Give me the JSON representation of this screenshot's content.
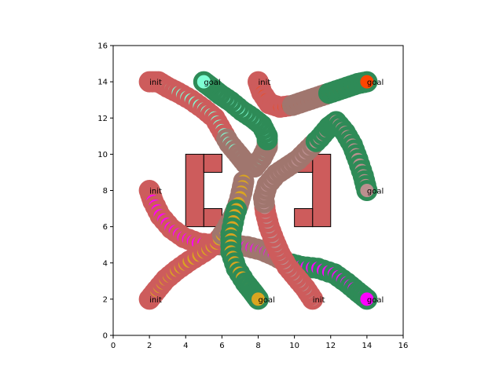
{
  "chart_data": {
    "type": "scatter",
    "title": "",
    "xlabel": "",
    "ylabel": "",
    "xlim": [
      0,
      16
    ],
    "ylim": [
      0,
      16
    ],
    "xticks": [
      0,
      2,
      4,
      6,
      8,
      10,
      12,
      14,
      16
    ],
    "yticks": [
      0,
      2,
      4,
      6,
      8,
      10,
      12,
      14,
      16
    ],
    "grid": false,
    "legend": "none",
    "colors": {
      "obstacle_fill": "#cd5c5c",
      "obstacle_edge": "#000000",
      "goal_ring": "#2e8b57",
      "init_ring": "#cd5c5c"
    },
    "obstacles": [
      {
        "x": 4,
        "y": 6,
        "w": 1,
        "h": 4
      },
      {
        "x": 5,
        "y": 9,
        "w": 1,
        "h": 1
      },
      {
        "x": 5,
        "y": 6,
        "w": 1,
        "h": 1
      },
      {
        "x": 11,
        "y": 6,
        "w": 1,
        "h": 4
      },
      {
        "x": 10,
        "y": 9,
        "w": 1,
        "h": 1
      },
      {
        "x": 10,
        "y": 6,
        "w": 1,
        "h": 1
      }
    ],
    "annotations": [
      {
        "text": "init",
        "x": 2,
        "y": 14
      },
      {
        "text": "goal",
        "x": 5,
        "y": 14
      },
      {
        "text": "init",
        "x": 8,
        "y": 14
      },
      {
        "text": "goal",
        "x": 14,
        "y": 14
      },
      {
        "text": "init",
        "x": 2,
        "y": 8
      },
      {
        "text": "goal",
        "x": 14,
        "y": 8
      },
      {
        "text": "init",
        "x": 2,
        "y": 2
      },
      {
        "text": "goal",
        "x": 8,
        "y": 2
      },
      {
        "text": "init",
        "x": 11,
        "y": 2
      },
      {
        "text": "goal",
        "x": 14,
        "y": 2
      }
    ],
    "series": [
      {
        "color": "#7fffd4",
        "points": [
          [
            2,
            14
          ],
          [
            2.5,
            14
          ],
          [
            3,
            13.7
          ],
          [
            3.6,
            13.4
          ],
          [
            4.3,
            13
          ],
          [
            5,
            12.5
          ],
          [
            5.6,
            12
          ],
          [
            6,
            11.3
          ],
          [
            6.4,
            10.6
          ],
          [
            6.9,
            10
          ],
          [
            7.3,
            9.5
          ],
          [
            7.8,
            9.3
          ],
          [
            8.2,
            9.8
          ],
          [
            8.5,
            10.4
          ],
          [
            8.5,
            11
          ],
          [
            8.2,
            11.6
          ],
          [
            7.7,
            12
          ],
          [
            7.1,
            12.4
          ],
          [
            6.5,
            12.9
          ],
          [
            5.9,
            13.3
          ],
          [
            5.4,
            13.7
          ],
          [
            5,
            14
          ]
        ]
      },
      {
        "color": "#ff4500",
        "points": [
          [
            8,
            14
          ],
          [
            8.2,
            13.4
          ],
          [
            8.6,
            12.8
          ],
          [
            9.2,
            12.6
          ],
          [
            9.9,
            12.7
          ],
          [
            10.5,
            12.9
          ],
          [
            11.1,
            13.1
          ],
          [
            11.7,
            13.3
          ],
          [
            12.3,
            13.5
          ],
          [
            12.9,
            13.7
          ],
          [
            13.5,
            13.9
          ],
          [
            14,
            14
          ]
        ]
      },
      {
        "color": "#ff00ff",
        "points": [
          [
            2,
            8
          ],
          [
            2.2,
            7.4
          ],
          [
            2.6,
            6.6
          ],
          [
            3.2,
            5.9
          ],
          [
            3.9,
            5.4
          ],
          [
            4.7,
            5.1
          ],
          [
            5.6,
            5
          ],
          [
            6.5,
            5
          ],
          [
            7.4,
            4.9
          ],
          [
            8.2,
            4.7
          ],
          [
            8.9,
            4.4
          ],
          [
            9.6,
            4
          ],
          [
            10.4,
            3.8
          ],
          [
            11.3,
            3.7
          ],
          [
            12.2,
            3.4
          ],
          [
            12.9,
            2.9
          ],
          [
            13.5,
            2.4
          ],
          [
            14,
            2
          ]
        ]
      },
      {
        "color": "#daa520",
        "points": [
          [
            2,
            2
          ],
          [
            2.4,
            2.5
          ],
          [
            2.9,
            3.1
          ],
          [
            3.5,
            3.6
          ],
          [
            4.2,
            4.1
          ],
          [
            5,
            4.6
          ],
          [
            5.7,
            5.1
          ],
          [
            6.2,
            5.8
          ],
          [
            6.6,
            6.5
          ],
          [
            6.9,
            7.2
          ],
          [
            7.1,
            7.9
          ],
          [
            7.2,
            8.5
          ],
          [
            7,
            7.6
          ],
          [
            6.7,
            6.6
          ],
          [
            6.5,
            5.6
          ],
          [
            6.5,
            4.6
          ],
          [
            6.8,
            3.7
          ],
          [
            7.3,
            2.9
          ],
          [
            7.7,
            2.4
          ],
          [
            8,
            2
          ]
        ]
      },
      {
        "color": "#bc8f8f",
        "points": [
          [
            11,
            2
          ],
          [
            10.6,
            2.6
          ],
          [
            10.1,
            3.2
          ],
          [
            9.6,
            3.8
          ],
          [
            9.2,
            4.5
          ],
          [
            8.9,
            5.2
          ],
          [
            8.6,
            6
          ],
          [
            8.4,
            6.8
          ],
          [
            8.3,
            7.6
          ],
          [
            8.5,
            8.3
          ],
          [
            9,
            8.9
          ],
          [
            9.6,
            9.3
          ],
          [
            10.2,
            9.7
          ],
          [
            10.8,
            10.3
          ],
          [
            11.4,
            10.9
          ],
          [
            11.9,
            11.5
          ],
          [
            12.3,
            11.8
          ],
          [
            12.8,
            11.2
          ],
          [
            13.2,
            10.5
          ],
          [
            13.5,
            9.7
          ],
          [
            13.8,
            8.8
          ],
          [
            14,
            8
          ]
        ]
      }
    ],
    "segment_colors": [
      "#cd5c5c",
      "#a0766e",
      "#2e8b57"
    ]
  }
}
